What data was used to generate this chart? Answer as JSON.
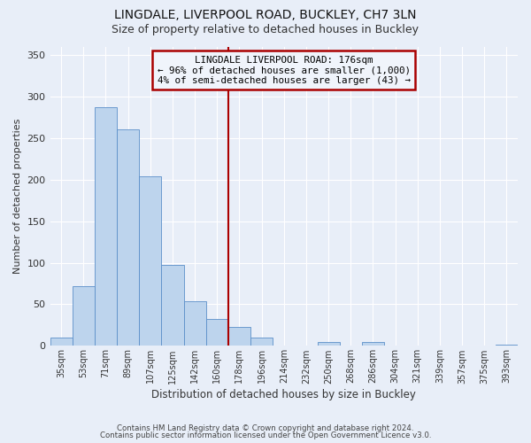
{
  "title": "LINGDALE, LIVERPOOL ROAD, BUCKLEY, CH7 3LN",
  "subtitle": "Size of property relative to detached houses in Buckley",
  "xlabel": "Distribution of detached houses by size in Buckley",
  "ylabel": "Number of detached properties",
  "bar_labels": [
    "35sqm",
    "53sqm",
    "71sqm",
    "89sqm",
    "107sqm",
    "125sqm",
    "142sqm",
    "160sqm",
    "178sqm",
    "196sqm",
    "214sqm",
    "232sqm",
    "250sqm",
    "268sqm",
    "286sqm",
    "304sqm",
    "321sqm",
    "339sqm",
    "357sqm",
    "375sqm",
    "393sqm"
  ],
  "bar_values": [
    10,
    72,
    287,
    260,
    204,
    97,
    54,
    32,
    23,
    10,
    0,
    0,
    5,
    0,
    5,
    0,
    0,
    0,
    0,
    0,
    2
  ],
  "bar_color": "#bdd4ed",
  "bar_edge_color": "#5b8fc9",
  "vline_x": 8,
  "vline_color": "#aa0000",
  "annotation_title": "LINGDALE LIVERPOOL ROAD: 176sqm",
  "annotation_line1": "← 96% of detached houses are smaller (1,000)",
  "annotation_line2": "4% of semi-detached houses are larger (43) →",
  "annotation_box_edgecolor": "#aa0000",
  "annotation_box_facecolor": "#f0f4fb",
  "ylim": [
    0,
    360
  ],
  "yticks": [
    0,
    50,
    100,
    150,
    200,
    250,
    300,
    350
  ],
  "footnote1": "Contains HM Land Registry data © Crown copyright and database right 2024.",
  "footnote2": "Contains public sector information licensed under the Open Government Licence v3.0.",
  "background_color": "#e8eef8",
  "grid_color": "#ffffff",
  "title_fontsize": 10,
  "subtitle_fontsize": 9
}
